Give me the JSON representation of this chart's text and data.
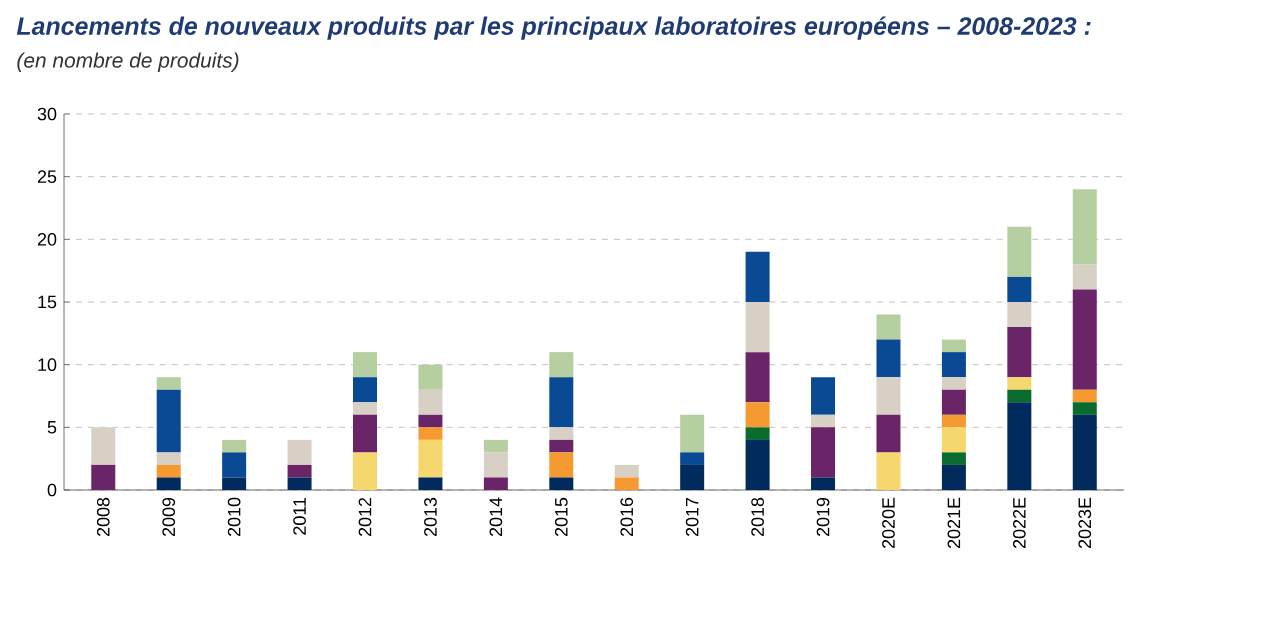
{
  "chart_data": {
    "type": "bar",
    "stacked": true,
    "title": "Lancements de nouveaux produits par les principaux laboratoires européens – 2008-2023 :",
    "subtitle": "(en nombre de produits)",
    "categories": [
      "2008",
      "2009",
      "2010",
      "2011",
      "2012",
      "2013",
      "2014",
      "2015",
      "2016",
      "2017",
      "2018",
      "2019",
      "2020E",
      "2021E",
      "2022E",
      "2023E"
    ],
    "series": [
      {
        "color": "#002b5c",
        "values": [
          0,
          1,
          1,
          1,
          0,
          1,
          0,
          1,
          0,
          2,
          4,
          1,
          0,
          2,
          7,
          6
        ]
      },
      {
        "color": "#0a6b2e",
        "values": [
          0,
          0,
          0,
          0,
          0,
          0,
          0,
          0,
          0,
          0,
          1,
          0,
          0,
          1,
          1,
          1
        ]
      },
      {
        "color": "#f5d76e",
        "values": [
          0,
          0,
          0,
          0,
          3,
          3,
          0,
          0,
          0,
          0,
          0,
          0,
          3,
          2,
          1,
          0
        ]
      },
      {
        "color": "#f59a30",
        "values": [
          0,
          1,
          0,
          0,
          0,
          1,
          0,
          2,
          1,
          0,
          2,
          0,
          0,
          1,
          0,
          1
        ]
      },
      {
        "color": "#6a2468",
        "values": [
          2,
          0,
          0,
          1,
          3,
          1,
          1,
          1,
          0,
          0,
          4,
          4,
          3,
          2,
          4,
          8
        ]
      },
      {
        "color": "#d9d0c5",
        "values": [
          3,
          1,
          0,
          2,
          1,
          2,
          2,
          1,
          1,
          0,
          4,
          1,
          3,
          1,
          2,
          2
        ]
      },
      {
        "color": "#0a4a94",
        "values": [
          0,
          5,
          2,
          0,
          2,
          0,
          0,
          4,
          0,
          1,
          4,
          3,
          3,
          2,
          2,
          0
        ]
      },
      {
        "color": "#b5cfa0",
        "values": [
          0,
          1,
          1,
          0,
          2,
          2,
          1,
          2,
          0,
          3,
          0,
          0,
          2,
          1,
          4,
          6
        ]
      }
    ],
    "ylim": [
      0,
      30
    ],
    "yticks": [
      0,
      5,
      10,
      15,
      20,
      25,
      30
    ],
    "grid": "y"
  }
}
